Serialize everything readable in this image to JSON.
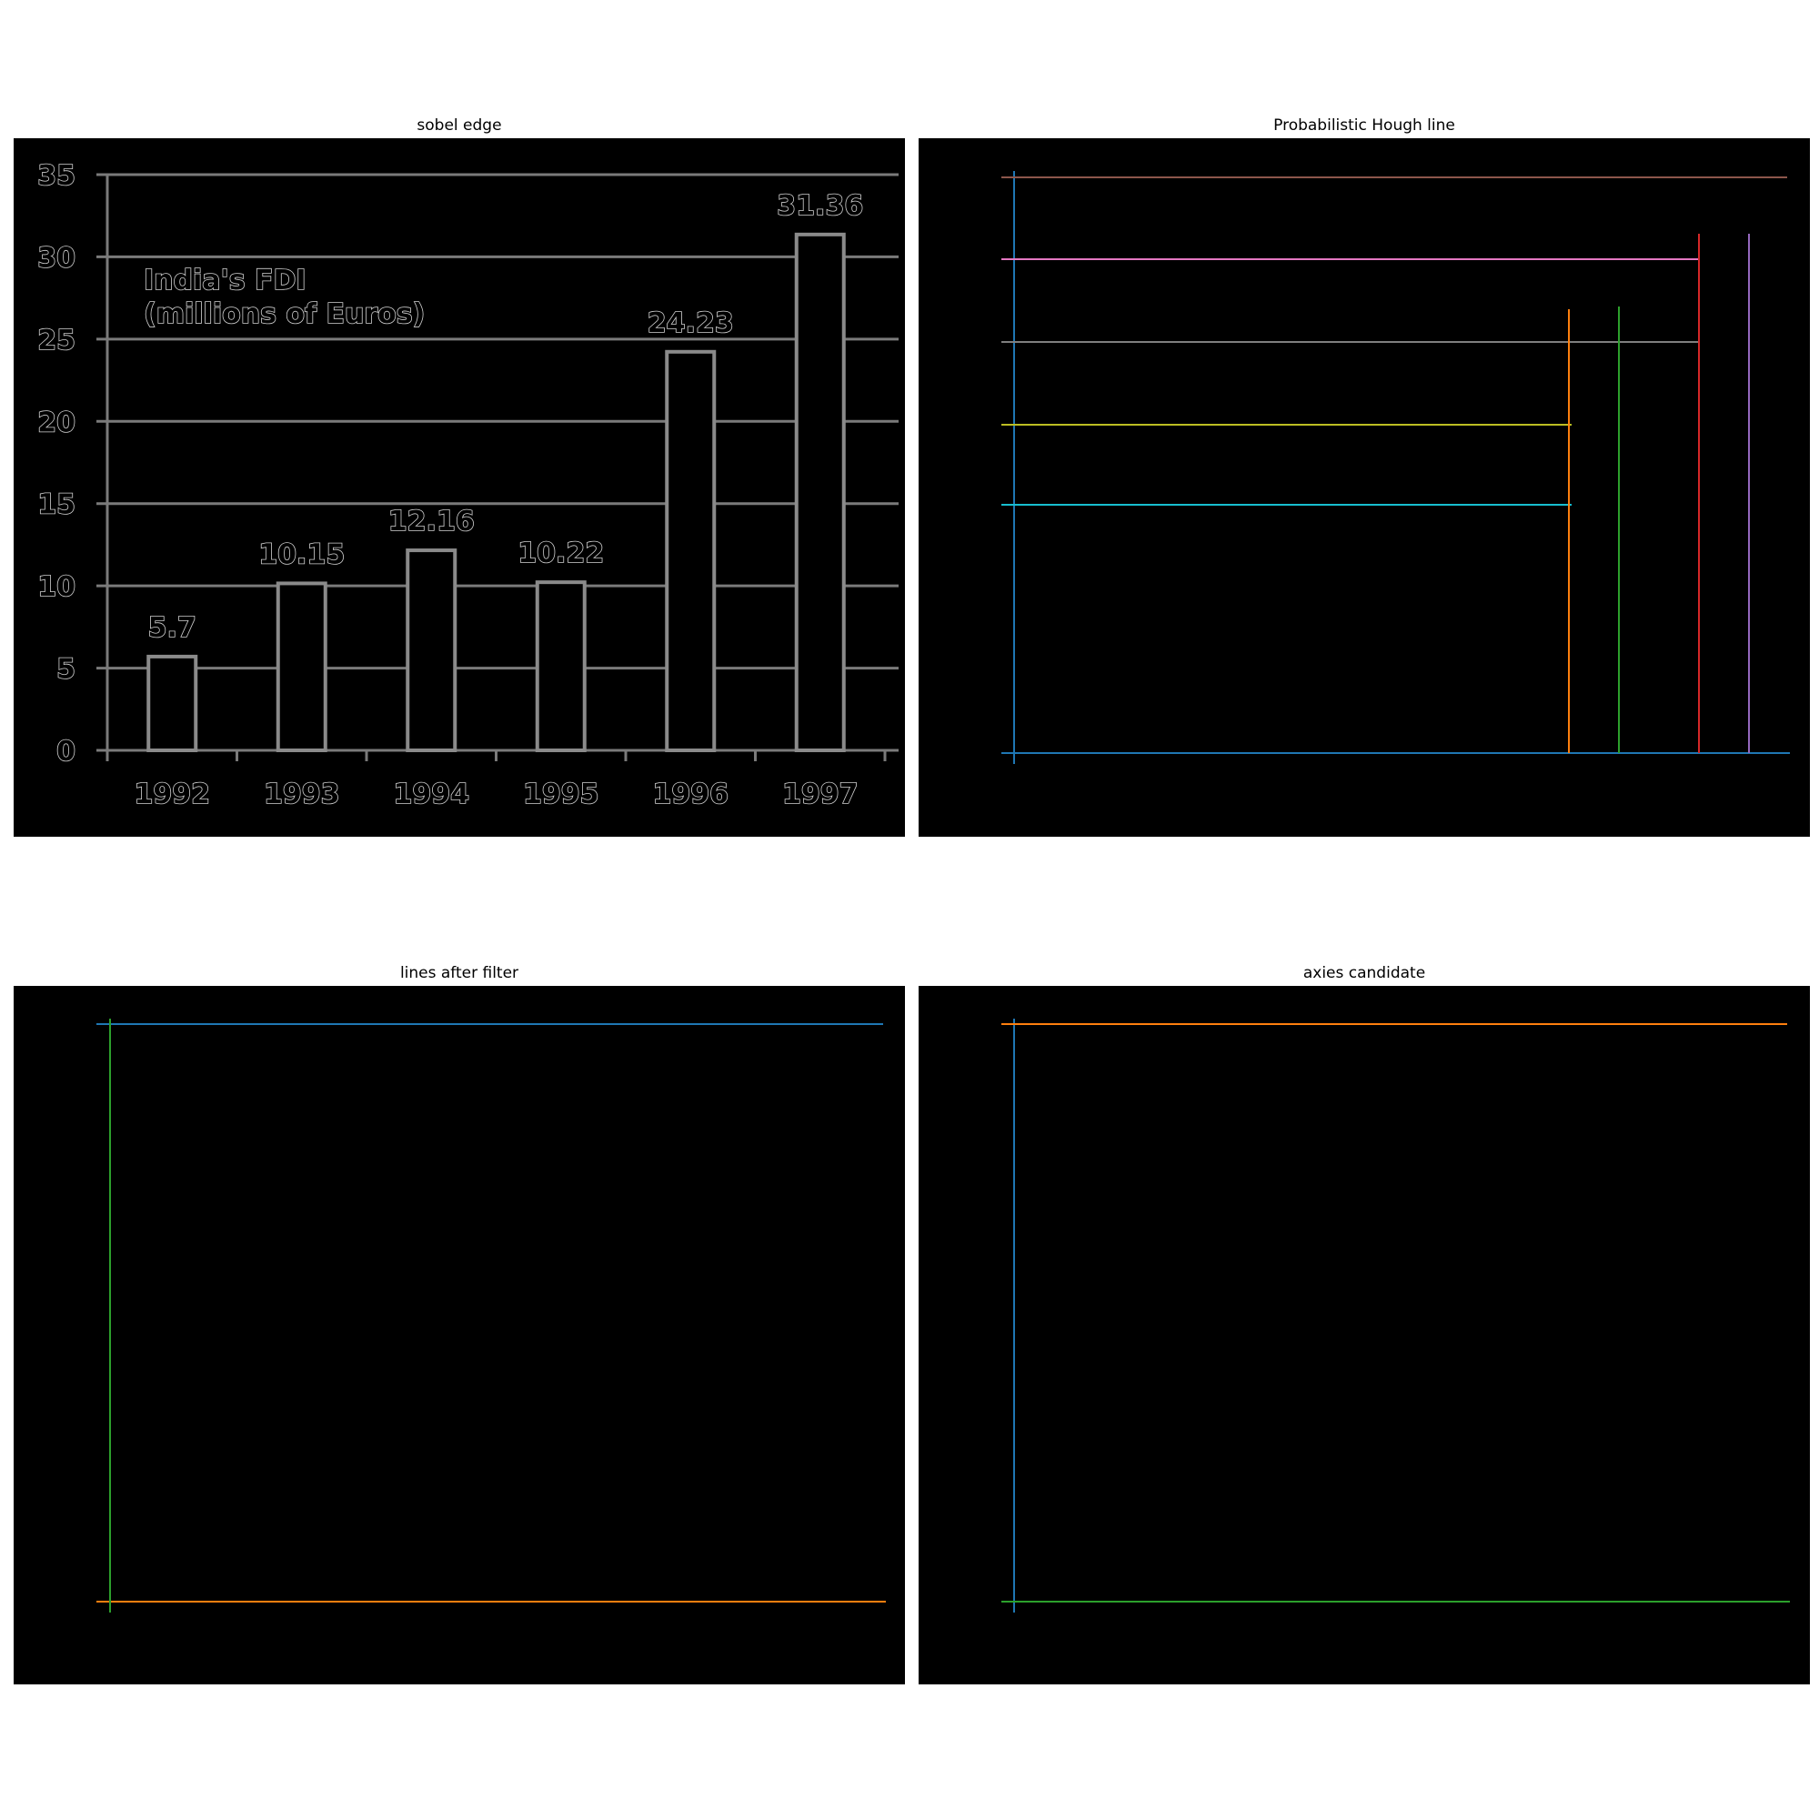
{
  "panels": {
    "sobel": {
      "title": "sobel edge"
    },
    "hough": {
      "title": "Probabilistic Hough line"
    },
    "filter": {
      "title": "lines after filter"
    },
    "axes": {
      "title": "axies candidate"
    }
  },
  "chart_data": [
    {
      "type": "bar",
      "title": "India's FDI\n(millions of Euros)",
      "title_lines": [
        "India's FDI",
        "(millions of Euros)"
      ],
      "categories": [
        "1992",
        "1993",
        "1994",
        "1995",
        "1996",
        "1997"
      ],
      "values": [
        5.7,
        10.15,
        12.16,
        10.22,
        24.23,
        31.36
      ],
      "data_labels": [
        "5.7",
        "10.15",
        "12.16",
        "10.22",
        "24.23",
        "31.36"
      ],
      "y_ticks": [
        "0",
        "5",
        "10",
        "15",
        "20",
        "25",
        "30",
        "35"
      ],
      "ylim": [
        0,
        35
      ],
      "grid": true
    }
  ],
  "line_colors": {
    "blue": "#1f77b4",
    "orange": "#ff7f0e",
    "green": "#2ca02c",
    "red": "#d62728",
    "purple": "#9467bd",
    "brown": "#8c564b",
    "pink": "#e377c2",
    "gray": "#7f7f7f",
    "olive": "#bcbd22",
    "cyan": "#17becf"
  }
}
